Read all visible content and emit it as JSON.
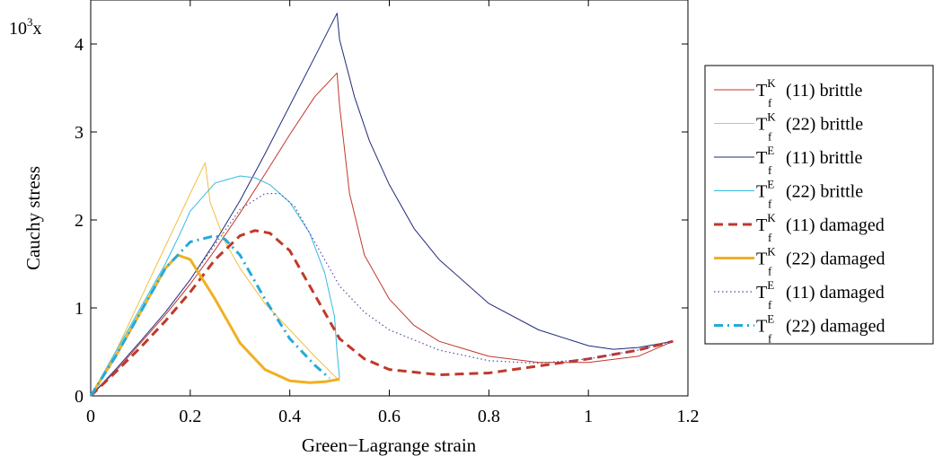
{
  "chart_data": {
    "type": "line",
    "xlabel": "Green−Lagrange strain",
    "ylabel": "Cauchy stress",
    "y_scale_label": {
      "base": "10",
      "exponent": "3",
      "suffix": "x"
    },
    "xlim": [
      0,
      1.2
    ],
    "ylim": [
      0,
      4.5
    ],
    "xticks": [
      {
        "value": 0,
        "label": "0"
      },
      {
        "value": 0.2,
        "label": "0.2"
      },
      {
        "value": 0.4,
        "label": "0.4"
      },
      {
        "value": 0.6,
        "label": "0.6"
      },
      {
        "value": 0.8,
        "label": "0.8"
      },
      {
        "value": 1.0,
        "label": "1"
      },
      {
        "value": 1.2,
        "label": "1.2"
      }
    ],
    "yticks": [
      {
        "value": 0,
        "label": "0"
      },
      {
        "value": 1,
        "label": "1"
      },
      {
        "value": 2,
        "label": "2"
      },
      {
        "value": 3,
        "label": "3"
      },
      {
        "value": 4,
        "label": "4"
      }
    ],
    "grid": false,
    "legend_position": "outside-right",
    "series": [
      {
        "name": "(11) brittle",
        "symbol": "T",
        "sup": "K",
        "sub": "f",
        "color": "#c0392b",
        "style": "solid",
        "x": [
          0,
          0.05,
          0.1,
          0.15,
          0.2,
          0.25,
          0.3,
          0.35,
          0.4,
          0.45,
          0.495,
          0.5,
          0.52,
          0.55,
          0.6,
          0.65,
          0.7,
          0.8,
          0.9,
          1.0,
          1.1,
          1.17
        ],
        "y": [
          0,
          0.28,
          0.6,
          0.92,
          1.27,
          1.66,
          2.08,
          2.52,
          2.97,
          3.4,
          3.67,
          3.3,
          2.3,
          1.6,
          1.1,
          0.8,
          0.62,
          0.45,
          0.38,
          0.38,
          0.45,
          0.62
        ]
      },
      {
        "name": "(22) brittle",
        "symbol": "T",
        "sup": "K",
        "sub": "f",
        "color": "#f0c040",
        "style": "solid",
        "x": [
          0,
          0.05,
          0.1,
          0.15,
          0.2,
          0.23,
          0.24,
          0.27,
          0.3,
          0.35,
          0.4,
          0.45,
          0.5
        ],
        "y": [
          0,
          0.5,
          1.1,
          1.7,
          2.3,
          2.65,
          2.2,
          1.75,
          1.45,
          1.05,
          0.75,
          0.45,
          0.17
        ]
      },
      {
        "name": "(11) brittle",
        "symbol": "T",
        "sup": "E",
        "sub": "f",
        "color": "#1f2a7a",
        "style": "solid",
        "x": [
          0,
          0.05,
          0.1,
          0.15,
          0.2,
          0.25,
          0.3,
          0.35,
          0.4,
          0.45,
          0.495,
          0.5,
          0.53,
          0.56,
          0.6,
          0.65,
          0.7,
          0.8,
          0.9,
          1.0,
          1.05,
          1.1,
          1.17
        ],
        "y": [
          0,
          0.3,
          0.62,
          0.95,
          1.32,
          1.75,
          2.22,
          2.75,
          3.3,
          3.85,
          4.35,
          4.05,
          3.4,
          2.9,
          2.4,
          1.9,
          1.55,
          1.05,
          0.75,
          0.57,
          0.53,
          0.55,
          0.62
        ]
      },
      {
        "name": "(22) brittle",
        "symbol": "T",
        "sup": "E",
        "sub": "f",
        "color": "#33bbdd",
        "style": "solid",
        "x": [
          0,
          0.05,
          0.1,
          0.15,
          0.18,
          0.2,
          0.25,
          0.3,
          0.33,
          0.36,
          0.4,
          0.44,
          0.47,
          0.49,
          0.495,
          0.5
        ],
        "y": [
          0,
          0.5,
          1.0,
          1.5,
          1.85,
          2.1,
          2.42,
          2.5,
          2.48,
          2.4,
          2.2,
          1.85,
          1.4,
          0.9,
          0.5,
          0.2
        ]
      },
      {
        "name": "(11) damaged",
        "symbol": "T",
        "sup": "K",
        "sub": "f",
        "color": "#c0392b",
        "style": "dashed",
        "x": [
          0,
          0.05,
          0.1,
          0.15,
          0.2,
          0.25,
          0.3,
          0.33,
          0.36,
          0.4,
          0.45,
          0.5,
          0.55,
          0.6,
          0.7,
          0.8,
          0.9,
          1.0,
          1.1,
          1.17
        ],
        "y": [
          0,
          0.27,
          0.55,
          0.85,
          1.18,
          1.55,
          1.82,
          1.88,
          1.85,
          1.65,
          1.15,
          0.65,
          0.42,
          0.3,
          0.24,
          0.26,
          0.34,
          0.42,
          0.52,
          0.62
        ]
      },
      {
        "name": "(22) damaged",
        "symbol": "T",
        "sup": "K",
        "sub": "f",
        "color": "#f0b020",
        "style": "solid-thick",
        "x": [
          0,
          0.05,
          0.1,
          0.15,
          0.175,
          0.2,
          0.25,
          0.3,
          0.35,
          0.4,
          0.44,
          0.47,
          0.5
        ],
        "y": [
          0,
          0.45,
          0.95,
          1.45,
          1.6,
          1.55,
          1.1,
          0.6,
          0.3,
          0.17,
          0.15,
          0.16,
          0.19
        ]
      },
      {
        "name": "(11) damaged",
        "symbol": "T",
        "sup": "E",
        "sub": "f",
        "color": "#5a4aa0",
        "style": "dotted",
        "x": [
          0,
          0.05,
          0.1,
          0.15,
          0.2,
          0.25,
          0.3,
          0.35,
          0.38,
          0.41,
          0.45,
          0.5,
          0.55,
          0.6,
          0.7,
          0.8,
          0.9,
          1.0,
          1.1,
          1.17
        ],
        "y": [
          0,
          0.3,
          0.62,
          0.95,
          1.32,
          1.72,
          2.12,
          2.3,
          2.3,
          2.15,
          1.75,
          1.25,
          0.95,
          0.75,
          0.52,
          0.4,
          0.37,
          0.42,
          0.52,
          0.62
        ]
      },
      {
        "name": "(22) damaged",
        "symbol": "T",
        "sup": "E",
        "sub": "f",
        "color": "#22aadd",
        "style": "dashdot",
        "x": [
          0,
          0.05,
          0.1,
          0.15,
          0.2,
          0.25,
          0.27,
          0.3,
          0.35,
          0.4,
          0.45,
          0.48
        ],
        "y": [
          0,
          0.45,
          0.95,
          1.45,
          1.75,
          1.82,
          1.78,
          1.6,
          1.1,
          0.65,
          0.35,
          0.2
        ]
      }
    ]
  }
}
